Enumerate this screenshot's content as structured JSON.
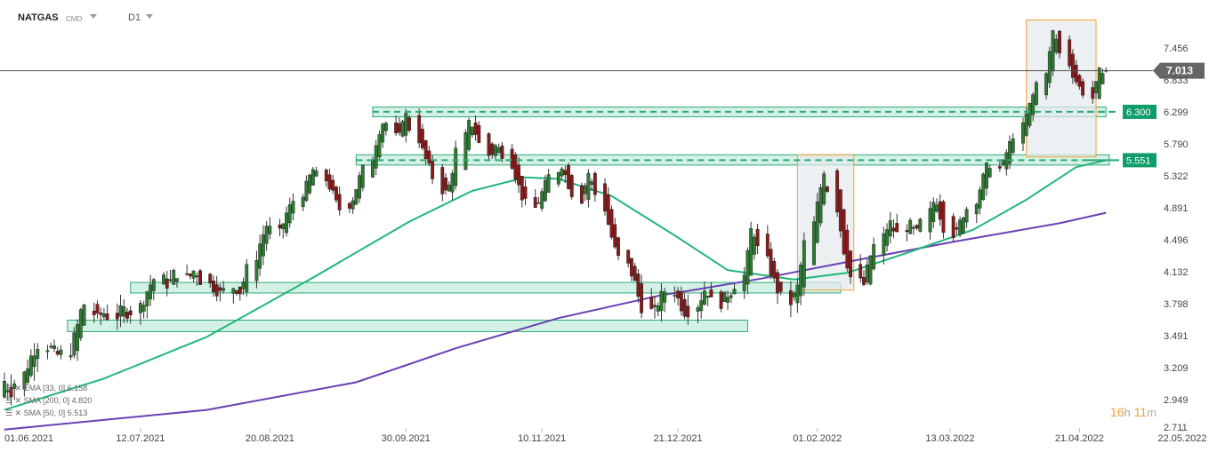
{
  "header": {
    "symbol": "NATGAS",
    "type": "CMD",
    "timeframe": "D1"
  },
  "legend": [
    {
      "label": "EMA [33, 0] 6.158",
      "color": "#8a8a8a"
    },
    {
      "label": "SMA [200, 0] 4.820",
      "color": "#8a8a8a"
    },
    {
      "label": "SMA [50, 0] 5.513",
      "color": "#8a8a8a"
    }
  ],
  "timer": {
    "hours": "16",
    "h_unit": "h",
    "minutes": "11",
    "m_unit": "m"
  },
  "colors": {
    "bull": "#2e7d32",
    "bear": "#8b1a1a",
    "zone_fill": "#a8e6cc",
    "zone_stroke": "#2ea878",
    "sma50": "#22b57a",
    "sma200": "#6a3fb5",
    "box_fill": "#e6e9ee",
    "box_stroke": "#f0a030",
    "price_label": "#666666",
    "level_label": "#0f9d6a"
  },
  "chart_data": {
    "type": "candlestick",
    "y_ticks": [
      7.456,
      6.833,
      6.299,
      5.79,
      5.322,
      4.891,
      4.496,
      4.132,
      3.798,
      3.491,
      3.209,
      2.949,
      2.711
    ],
    "x_ticks": [
      "01.06.2021",
      "12.07.2021",
      "20.08.2021",
      "30.09.2021",
      "10.11.2021",
      "21.12.2021",
      "01.02.2022",
      "13.03.2022",
      "21.04.2022",
      "22.05.2022"
    ],
    "ylim": [
      2.711,
      8.0
    ],
    "current_price": 7.013,
    "levels": [
      {
        "value": 6.3,
        "label": "6.300"
      },
      {
        "value": 5.551,
        "label": "5.551"
      }
    ],
    "zones": [
      {
        "from_date": "2021-09-20",
        "to_date": "2022-04-29",
        "low": 6.22,
        "high": 6.38
      },
      {
        "from_date": "2021-09-15",
        "to_date": "2022-04-30",
        "low": 5.48,
        "high": 5.63
      },
      {
        "from_date": "2021-07-09",
        "to_date": "2022-02-08",
        "low": 3.91,
        "high": 4.02
      },
      {
        "from_date": "2021-06-20",
        "to_date": "2022-01-11",
        "low": 3.53,
        "high": 3.64
      }
    ],
    "boxes": [
      {
        "from_date": "2022-01-26",
        "to_date": "2022-02-12",
        "low": 3.94,
        "high": 5.63
      },
      {
        "from_date": "2022-04-05",
        "to_date": "2022-04-26",
        "low": 5.6,
        "high": 8.0
      }
    ],
    "candles_from_date": "2021-06-01",
    "candles_to_date": "2022-04-29",
    "ohlc_anchors": [
      [
        2.97,
        3.1
      ],
      [
        3.05,
        3.02
      ],
      [
        3.03,
        3.15
      ],
      [
        3.14,
        3.3
      ],
      [
        3.28,
        3.42
      ],
      [
        3.4,
        3.38
      ],
      [
        3.36,
        3.32
      ],
      [
        3.3,
        3.34
      ],
      [
        3.33,
        3.55
      ],
      [
        3.55,
        3.82
      ],
      [
        3.82,
        3.64
      ],
      [
        3.66,
        3.72
      ],
      [
        3.72,
        3.66
      ],
      [
        3.66,
        3.75
      ],
      [
        3.74,
        3.7
      ],
      [
        3.7,
        3.8
      ],
      [
        3.8,
        3.97
      ],
      [
        3.97,
        4.08
      ],
      [
        4.08,
        3.98
      ],
      [
        3.98,
        4.14
      ],
      [
        4.14,
        4.05
      ],
      [
        4.05,
        4.16
      ],
      [
        4.16,
        4.02
      ],
      [
        4.02,
        3.96
      ],
      [
        3.96,
        3.9
      ],
      [
        3.9,
        3.98
      ],
      [
        3.98,
        3.92
      ],
      [
        3.92,
        4.18
      ],
      [
        4.18,
        4.46
      ],
      [
        4.46,
        4.68
      ],
      [
        4.68,
        4.58
      ],
      [
        4.58,
        4.82
      ],
      [
        4.82,
        4.98
      ],
      [
        4.98,
        5.18
      ],
      [
        5.18,
        5.42
      ],
      [
        5.42,
        5.28
      ],
      [
        5.28,
        5.1
      ],
      [
        5.1,
        4.86
      ],
      [
        4.86,
        4.98
      ],
      [
        4.98,
        5.26
      ],
      [
        5.26,
        5.52
      ],
      [
        5.52,
        5.95
      ],
      [
        5.95,
        6.2
      ],
      [
        6.2,
        5.8
      ],
      [
        5.8,
        6.35
      ],
      [
        6.35,
        5.92
      ],
      [
        5.92,
        5.62
      ],
      [
        5.62,
        5.4
      ],
      [
        5.4,
        5.05
      ],
      [
        5.05,
        5.22
      ],
      [
        5.22,
        5.8
      ],
      [
        5.8,
        6.18
      ],
      [
        6.18,
        5.92
      ],
      [
        5.92,
        5.58
      ],
      [
        5.58,
        5.78
      ],
      [
        5.78,
        5.62
      ],
      [
        5.62,
        5.3
      ],
      [
        5.3,
        5.02
      ],
      [
        5.02,
        4.88
      ],
      [
        4.88,
        5.1
      ],
      [
        5.1,
        5.32
      ],
      [
        5.32,
        5.48
      ],
      [
        5.48,
        5.2
      ],
      [
        5.2,
        4.98
      ],
      [
        4.98,
        5.38
      ],
      [
        5.38,
        5.1
      ],
      [
        5.1,
        4.72
      ],
      [
        4.72,
        4.4
      ],
      [
        4.4,
        4.22
      ],
      [
        4.22,
        4.05
      ],
      [
        4.05,
        3.78
      ],
      [
        3.78,
        3.7
      ],
      [
        3.7,
        3.86
      ],
      [
        3.86,
        3.96
      ],
      [
        3.96,
        3.8
      ],
      [
        3.8,
        3.7
      ],
      [
        3.7,
        3.82
      ],
      [
        3.82,
        3.98
      ],
      [
        3.98,
        3.78
      ],
      [
        3.78,
        3.88
      ],
      [
        3.88,
        3.94
      ],
      [
        3.94,
        4.12
      ],
      [
        4.12,
        4.7
      ],
      [
        4.7,
        4.35
      ],
      [
        4.35,
        4.1
      ],
      [
        4.1,
        3.92
      ],
      [
        3.92,
        3.8
      ],
      [
        3.8,
        3.98
      ],
      [
        3.98,
        4.48
      ],
      [
        4.48,
        4.95
      ],
      [
        4.95,
        5.4
      ],
      [
        5.4,
        4.88
      ],
      [
        4.88,
        4.38
      ],
      [
        4.38,
        4.08
      ],
      [
        4.08,
        3.98
      ],
      [
        3.98,
        4.3
      ],
      [
        4.3,
        4.52
      ],
      [
        4.52,
        4.72
      ],
      [
        4.72,
        4.55
      ],
      [
        4.55,
        4.7
      ],
      [
        4.7,
        4.55
      ],
      [
        4.55,
        4.8
      ],
      [
        4.8,
        5.05
      ],
      [
        5.05,
        4.68
      ],
      [
        4.68,
        4.52
      ],
      [
        4.52,
        4.78
      ],
      [
        4.78,
        4.92
      ],
      [
        4.92,
        5.22
      ],
      [
        5.22,
        5.52
      ],
      [
        5.52,
        5.4
      ],
      [
        5.4,
        5.72
      ],
      [
        5.72,
        5.96
      ],
      [
        5.96,
        6.3
      ],
      [
        6.3,
        6.62
      ],
      [
        6.62,
        7.05
      ],
      [
        7.05,
        7.85
      ],
      [
        7.85,
        7.3
      ],
      [
        7.3,
        6.9
      ],
      [
        6.9,
        6.7
      ],
      [
        6.7,
        6.52
      ],
      [
        6.52,
        7.02
      ],
      [
        7.02,
        7.013
      ]
    ],
    "sma50": [
      [
        "2021-06-01",
        2.86
      ],
      [
        "2021-07-01",
        3.12
      ],
      [
        "2021-08-01",
        3.48
      ],
      [
        "2021-09-01",
        4.05
      ],
      [
        "2021-10-01",
        4.72
      ],
      [
        "2021-10-20",
        5.12
      ],
      [
        "2021-11-05",
        5.3
      ],
      [
        "2021-11-15",
        5.28
      ],
      [
        "2021-12-01",
        5.05
      ],
      [
        "2021-12-20",
        4.55
      ],
      [
        "2022-01-05",
        4.15
      ],
      [
        "2022-01-25",
        4.05
      ],
      [
        "2022-02-10",
        4.12
      ],
      [
        "2022-03-01",
        4.36
      ],
      [
        "2022-03-20",
        4.62
      ],
      [
        "2022-04-05",
        5.0
      ],
      [
        "2022-04-20",
        5.45
      ],
      [
        "2022-04-29",
        5.55
      ]
    ],
    "sma200": [
      [
        "2021-06-01",
        2.69
      ],
      [
        "2021-08-01",
        2.86
      ],
      [
        "2021-09-15",
        3.09
      ],
      [
        "2021-10-15",
        3.38
      ],
      [
        "2021-11-15",
        3.66
      ],
      [
        "2021-12-15",
        3.88
      ],
      [
        "2022-01-15",
        4.06
      ],
      [
        "2022-02-15",
        4.28
      ],
      [
        "2022-03-15",
        4.48
      ],
      [
        "2022-04-15",
        4.7
      ],
      [
        "2022-04-29",
        4.83
      ]
    ]
  }
}
